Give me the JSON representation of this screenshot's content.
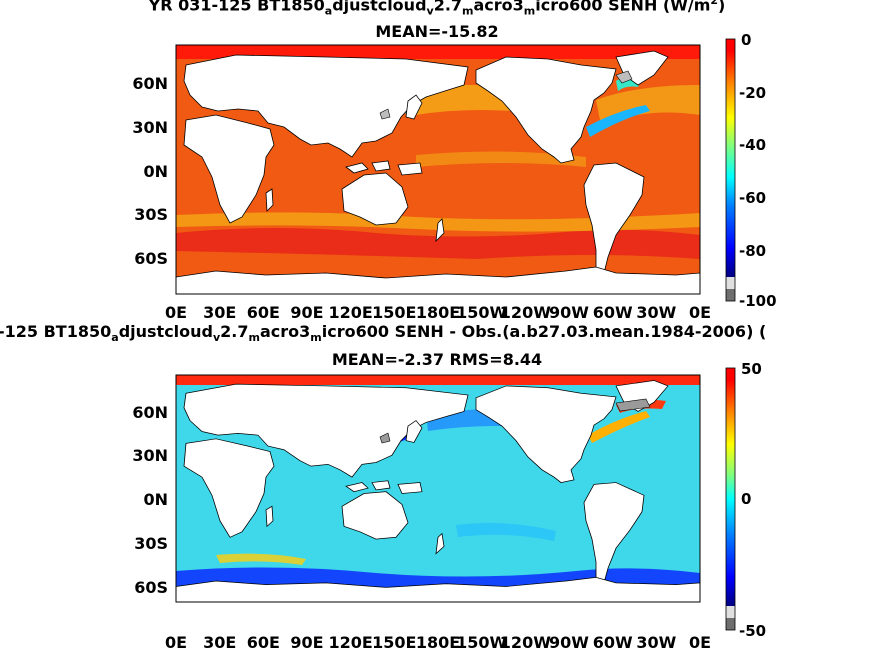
{
  "chart_data": [
    {
      "type": "heatmap",
      "title_line1": {
        "pre": "YR 031-125 BT1850",
        "s1": "a",
        "m1": "djustcloud",
        "s2": "v",
        "m2": "2.7",
        "s3": "m",
        "m3": "acro3",
        "s4": "m",
        "m4": "icro600  SENH (W/m",
        "sup": "2",
        "post": ")"
      },
      "title_line2": "MEAN=-15.82",
      "x_ticks": [
        "0E",
        "30E",
        "60E",
        "90E",
        "120E",
        "150E",
        "180E",
        "150W",
        "120W",
        "90W",
        "60W",
        "30W",
        "0E"
      ],
      "y_ticks": [
        "60N",
        "30N",
        "0N",
        "30S",
        "60S"
      ],
      "colorbar_ticks": [
        "0",
        "-20",
        "-40",
        "-60",
        "-80",
        "-100"
      ],
      "colorbar_range": [
        -100,
        0
      ],
      "mean": -15.82
    },
    {
      "type": "heatmap",
      "title_line1": {
        "pre": "-125 BT1850",
        "s1": "a",
        "m1": "djustcloud",
        "s2": "v",
        "m2": "2.7",
        "s3": "m",
        "m3": "acro3",
        "s4": "m",
        "m4": "icro600 SENH - Obs.(a.b27.03.mean.1984-2006) (",
        "sup": "",
        "post": ""
      },
      "title_line2": "MEAN=-2.37 RMS=8.44",
      "x_ticks": [
        "0E",
        "30E",
        "60E",
        "90E",
        "120E",
        "150E",
        "180E",
        "150W",
        "120W",
        "90W",
        "60W",
        "30W",
        "0E"
      ],
      "y_ticks": [
        "60N",
        "30N",
        "0N",
        "30S",
        "60S"
      ],
      "colorbar_ticks": [
        "50",
        "0",
        "-50"
      ],
      "colorbar_range": [
        -50,
        50
      ],
      "mean": -2.37,
      "rms": 8.44
    }
  ],
  "colors": {
    "land": "#ffffff",
    "missing": "#bdbdbd",
    "top_ocean": "#f05a12",
    "bottom_ocean": "#3fd8ea",
    "jet_scale": [
      "#00007f",
      "#0000ff",
      "#007fff",
      "#00ffff",
      "#7fff7f",
      "#ffff00",
      "#ff7f00",
      "#ff0000",
      "#7f0000"
    ]
  }
}
